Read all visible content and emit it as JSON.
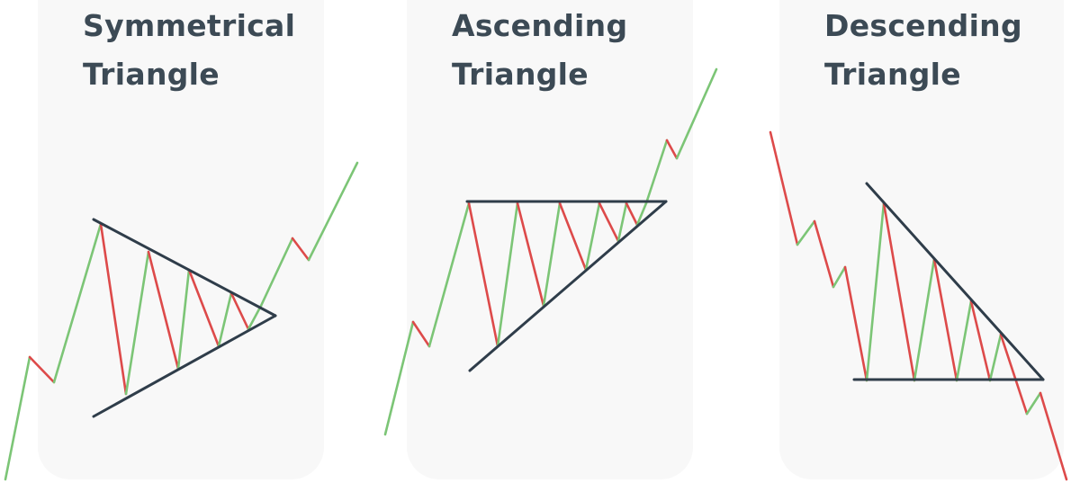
{
  "colors": {
    "up": "#7cc576",
    "down": "#dd4a4a",
    "trendline": "#2f3d4a",
    "title": "#3c4a55",
    "panel": "#f8f8f8"
  },
  "patterns": [
    {
      "id": "symmetrical",
      "title_line1": "Symmetrical",
      "title_line2": "Triangle"
    },
    {
      "id": "ascending",
      "title_line1": "Ascending",
      "title_line2": "Triangle"
    },
    {
      "id": "descending",
      "title_line1": "Descending",
      "title_line2": "Triangle"
    }
  ]
}
